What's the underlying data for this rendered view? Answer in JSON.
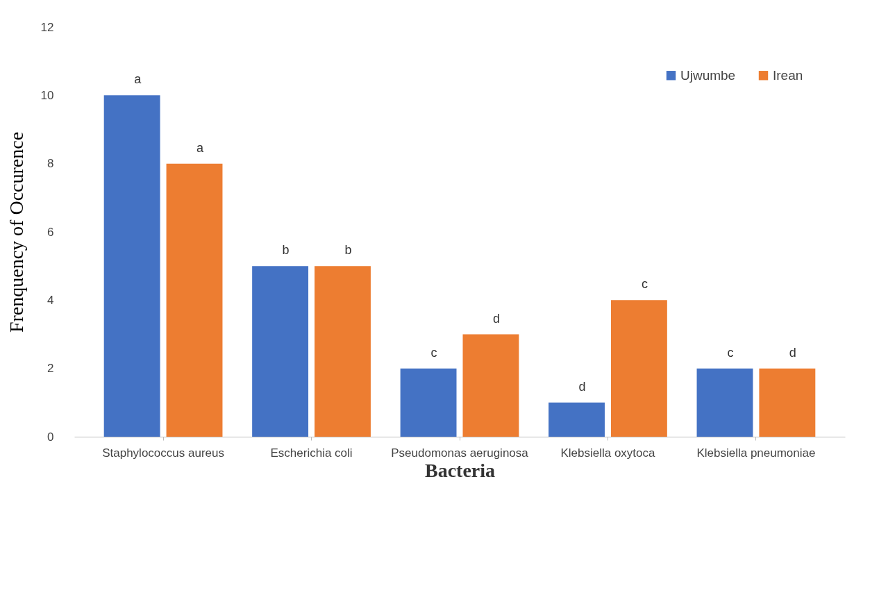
{
  "chart_data": {
    "type": "bar",
    "xlabel": "Bacteria",
    "ylabel": "Frenquency of Occurence",
    "categories": [
      "Staphylococcus aureus",
      "Escherichia coli",
      "Pseudomonas aeruginosa",
      "Klebsiella oxytoca",
      "Klebsiella pneumoniae"
    ],
    "series": [
      {
        "name": "Ujwumbe",
        "color": "#4472c4",
        "values": [
          10,
          5,
          2,
          1,
          2
        ],
        "value_labels": [
          "a",
          "b",
          "c",
          "d",
          "c"
        ]
      },
      {
        "name": "Irean",
        "color": "#ed7d31",
        "values": [
          8,
          5,
          3,
          4,
          2
        ],
        "value_labels": [
          "a",
          "b",
          "d",
          "c",
          "d"
        ]
      }
    ],
    "ylim": [
      0,
      12
    ],
    "yticks": [
      0,
      2,
      4,
      6,
      8,
      10,
      12
    ],
    "grid": false,
    "legend": "top right"
  }
}
